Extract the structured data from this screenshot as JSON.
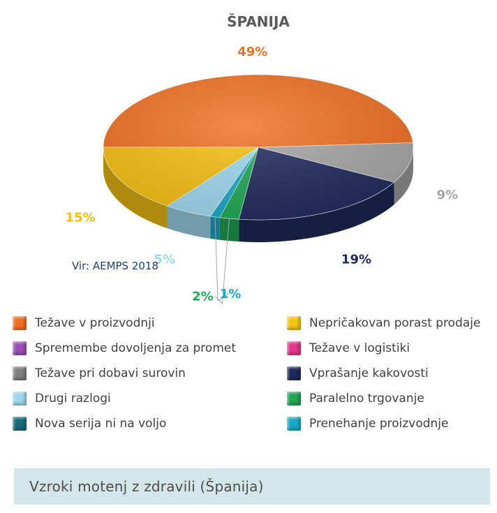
{
  "chart_data": {
    "type": "pie",
    "title": "ŠPANIJA",
    "slices": [
      {
        "name": "Težave v proizvodnji",
        "value": 49,
        "label": "49%",
        "color": "#f07020"
      },
      {
        "name": "Težave pri dobavi surovin",
        "value": 9,
        "label": "9%",
        "color": "#a6a6a6"
      },
      {
        "name": "Vprašanje kakovosti",
        "value": 19,
        "label": "19%",
        "color": "#1f2a5c"
      },
      {
        "name": "Paralelno trgovanje",
        "value": 2,
        "label": "2%",
        "color": "#1fa855"
      },
      {
        "name": "Prenehanje proizvodnje",
        "value": 1,
        "label": "1%",
        "color": "#1aa8c8"
      },
      {
        "name": "Drugi razlogi",
        "value": 5,
        "label": "5%",
        "color": "#9dd8ee"
      },
      {
        "name": "Nepričakovan porast prodaje",
        "value": 15,
        "label": "15%",
        "color": "#f5bf10"
      }
    ],
    "source": "Vir: AEMPS 2018"
  },
  "legend": [
    {
      "label": "Težave v proizvodnji",
      "color": "#f07020"
    },
    {
      "label": "Nepričakovan porast prodaje",
      "color": "#f5c518"
    },
    {
      "label": "Spremembe dovoljenja za promet",
      "color": "#9b4fb5"
    },
    {
      "label": "Težave v logistiki",
      "color": "#e0388a"
    },
    {
      "label": "Težave pri dobavi surovin",
      "color": "#7f7f7f"
    },
    {
      "label": "Vprašanje kakovosti",
      "color": "#1f2a5c"
    },
    {
      "label": "Drugi razlogi",
      "color": "#9dd8ee"
    },
    {
      "label": "Paralelno trgovanje",
      "color": "#1fa855"
    },
    {
      "label": "Nova serija ni na voljo",
      "color": "#1a6a7a"
    },
    {
      "label": "Prenehanje proizvodnje",
      "color": "#1aa8c8"
    }
  ],
  "footer": "Vzroki motenj z zdravili (Španija)"
}
